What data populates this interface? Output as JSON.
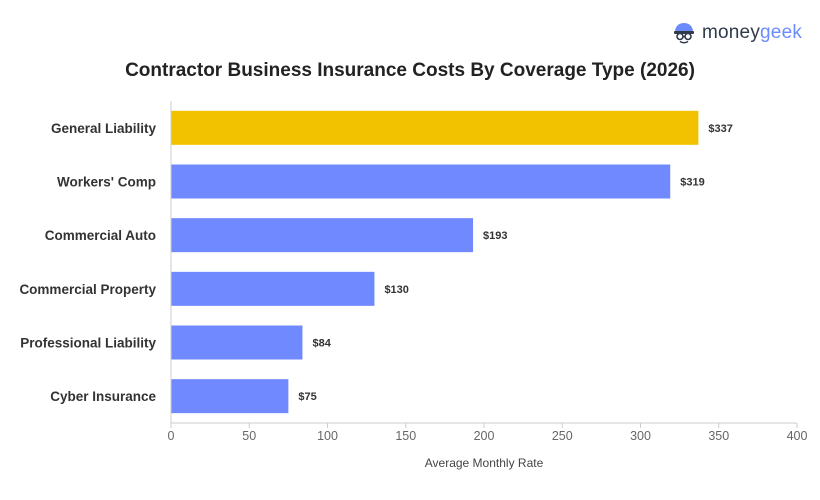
{
  "brand": {
    "name_part1": "money",
    "name_part2": "geek",
    "icon": "moneygeek-mascot-icon"
  },
  "chart_data": {
    "type": "bar",
    "orientation": "horizontal",
    "title": "Contractor Business Insurance Costs By Coverage Type (2026)",
    "xlabel": "Average Monthly Rate",
    "ylabel": "",
    "categories": [
      "General Liability",
      "Workers' Comp",
      "Commercial Auto",
      "Commercial Property",
      "Professional Liability",
      "Cyber Insurance"
    ],
    "values": [
      337,
      319,
      193,
      130,
      84,
      75
    ],
    "data_labels": [
      "$337",
      "$319",
      "$193",
      "$130",
      "$84",
      "$75"
    ],
    "bar_colors": [
      "#f2c200",
      "#7189ff",
      "#7189ff",
      "#7189ff",
      "#7189ff",
      "#7189ff"
    ],
    "xlim": [
      0,
      400
    ],
    "xticks": [
      0,
      50,
      100,
      150,
      200,
      250,
      300,
      350,
      400
    ],
    "xtick_labels": [
      "0",
      "50",
      "100",
      "150",
      "200",
      "250",
      "300",
      "350",
      "400"
    ],
    "grid": false,
    "legend": "none"
  }
}
